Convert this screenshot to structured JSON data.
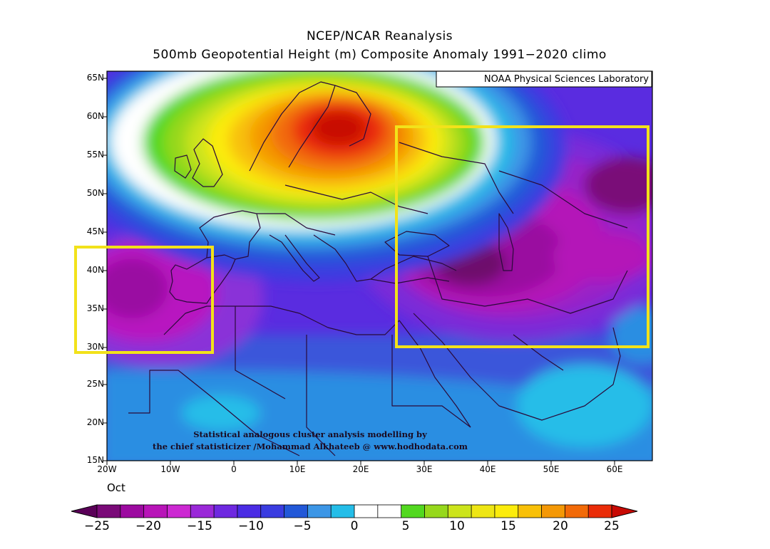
{
  "header": {
    "title": "NCEP/NCAR Reanalysis",
    "subtitle": "500mb Geopotential Height (m) Composite Anomaly 1991−2020 climo"
  },
  "map": {
    "credit": "NOAA Physical Sciences Laboratory",
    "lat_labels": [
      "65N",
      "60N",
      "55N",
      "50N",
      "45N",
      "40N",
      "35N",
      "30N",
      "25N",
      "20N",
      "15N"
    ],
    "lon_labels": [
      "20W",
      "10W",
      "0",
      "10E",
      "20E",
      "30E",
      "40E",
      "50E",
      "60E"
    ],
    "month_label": "Oct",
    "lon_range": [
      -20,
      65
    ],
    "lat_range": [
      15,
      65
    ],
    "watermark_line1": "Statistical analogous cluster analysis modelling by",
    "watermark_line2": "the chief statisticizer /Mohammad Alkhateeb @ www.hodhodata.com",
    "highlight_color": "#f2e21a"
  },
  "colorbar": {
    "labels": [
      "−25",
      "−20",
      "−15",
      "−10",
      "−5",
      "0",
      "5",
      "10",
      "15",
      "20",
      "25"
    ],
    "colors": [
      "#7a0a78",
      "#9c0aa0",
      "#b814b8",
      "#cc28d2",
      "#9a28d8",
      "#6e28e0",
      "#4a2ce4",
      "#3a3ce0",
      "#2258d8",
      "#3c96e6",
      "#24bde8",
      "#ffffff",
      "#ffffff",
      "#52d820",
      "#96d81c",
      "#cce41c",
      "#eee614",
      "#fcec0c",
      "#f8c008",
      "#f49806",
      "#f26a08",
      "#ea2c08"
    ],
    "end_low": "#5a0058",
    "end_high": "#c80a04"
  }
}
